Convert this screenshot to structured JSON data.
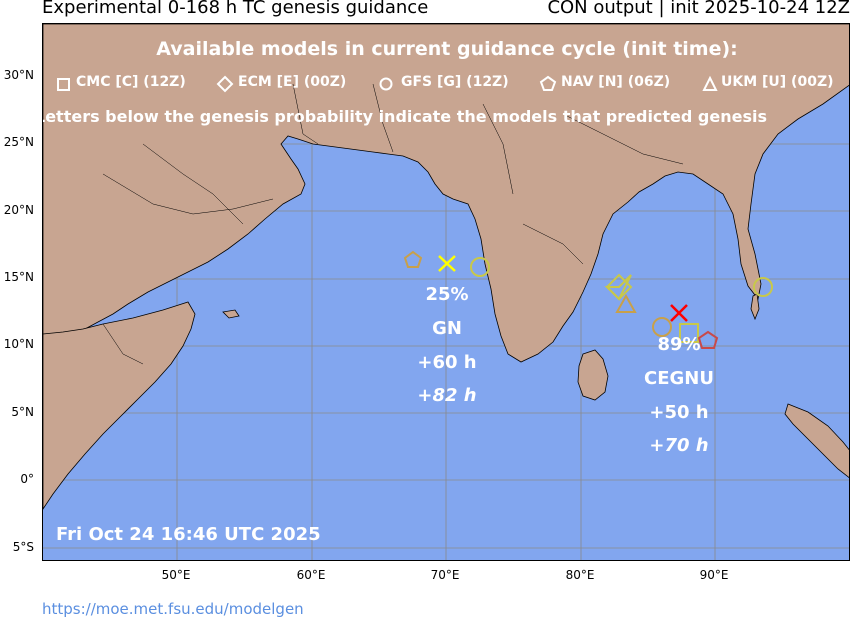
{
  "title": {
    "left": "Experimental 0-168 h TC genesis guidance",
    "right": "CON output | init 2025-10-24 12Z"
  },
  "banner": "Available models in current guidance cycle (init time):",
  "legend": [
    {
      "symbol": "square",
      "label": "CMC [C] (12Z)"
    },
    {
      "symbol": "diamond",
      "label": "ECM [E] (00Z)"
    },
    {
      "symbol": "circle",
      "label": "GFS [G] (12Z)"
    },
    {
      "symbol": "pentagon",
      "label": "NAV [N] (06Z)"
    },
    {
      "symbol": "triangle",
      "label": "UKM [U] (00Z)"
    }
  ],
  "letters_note": "Letters below the genesis probability indicate the models that predicted genesis",
  "timestamp": "Fri Oct 24 16:46 UTC 2025",
  "url": "https://moe.met.fsu.edu/modelgen",
  "axes": {
    "lat_ticks": [
      "30°N",
      "25°N",
      "20°N",
      "15°N",
      "10°N",
      "5°N",
      "0°",
      "5°S"
    ],
    "lon_ticks": [
      "50°E",
      "60°E",
      "70°E",
      "80°E",
      "90°E"
    ]
  },
  "clusters": [
    {
      "prob": "25%",
      "models": "GN",
      "lead": "+60 h",
      "lead2": "+82 h",
      "center_lon": 70.0,
      "center_lat": 16.2,
      "color": "#ffff00"
    },
    {
      "prob": "89%",
      "models": "CEGNU",
      "lead": "+50 h",
      "lead2": "+70 h",
      "center_lon": 87.2,
      "center_lat": 12.5,
      "color": "#ff0000"
    }
  ],
  "colors": {
    "ocean": "#82a6ef",
    "land": "#c8a591",
    "text": "#ffffff"
  }
}
